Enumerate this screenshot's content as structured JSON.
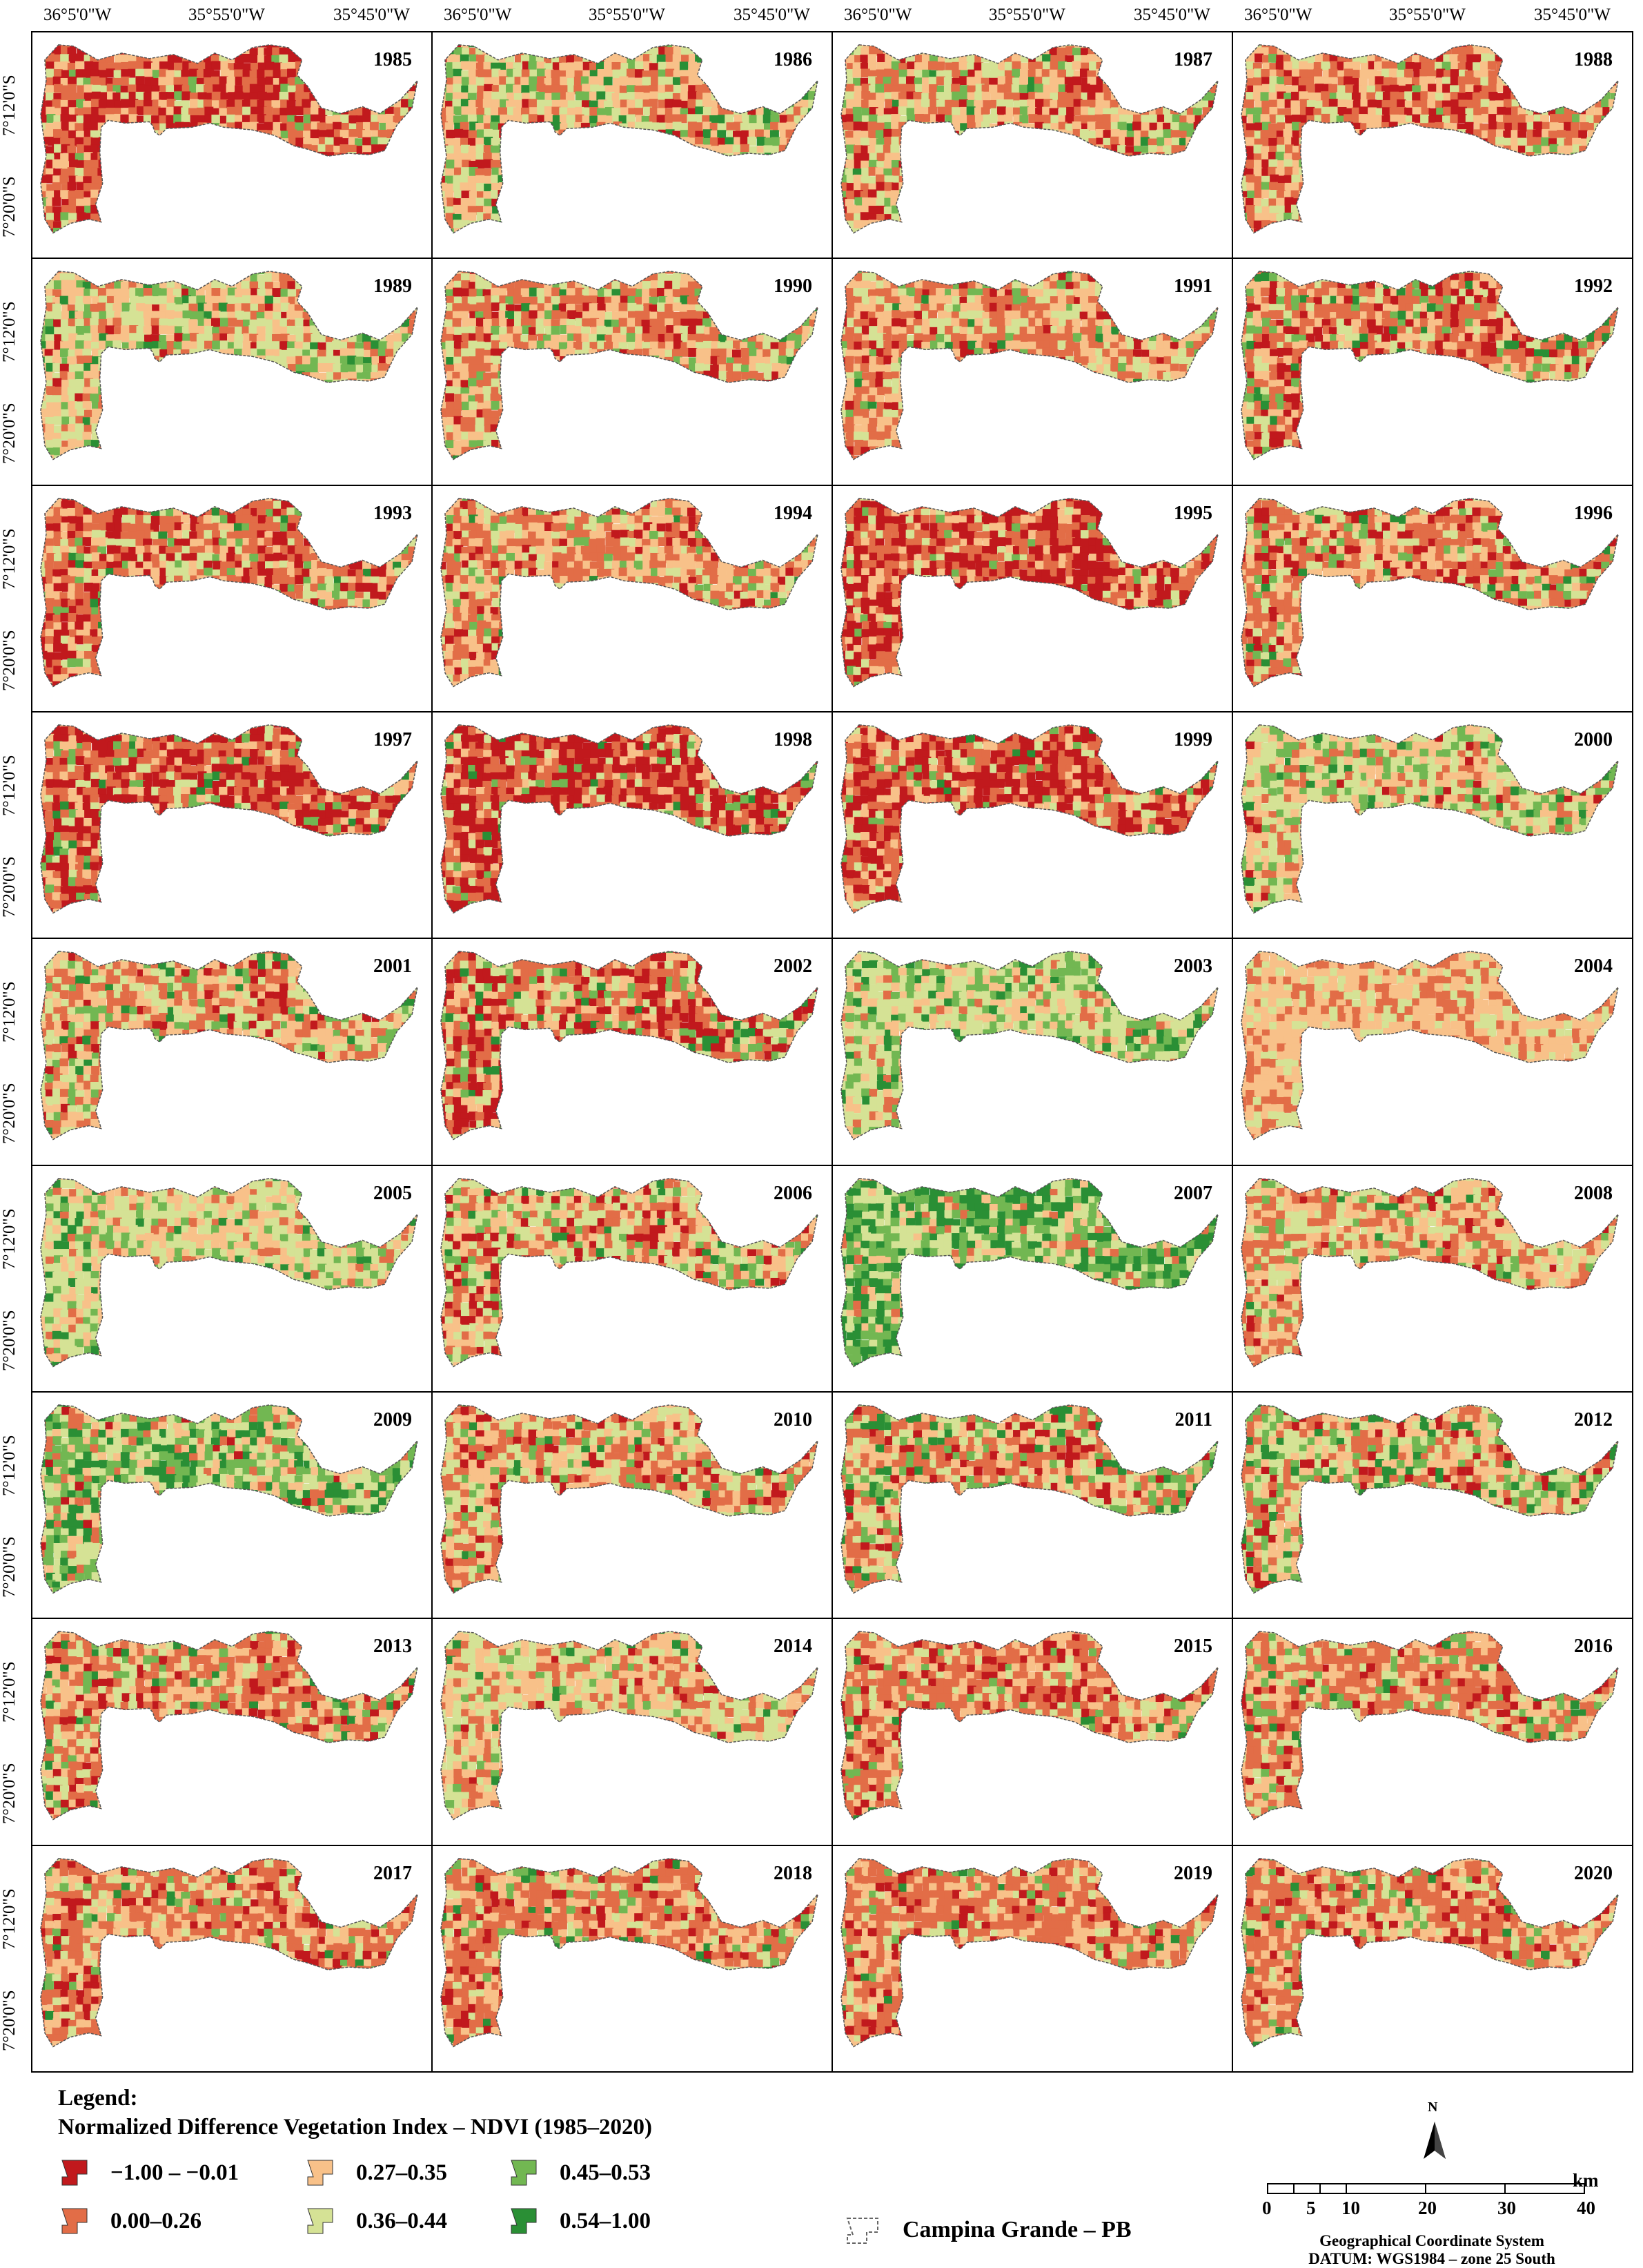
{
  "top_axis_labels": [
    "36°5'0\"W",
    "35°55'0\"W",
    "35°45'0\"W"
  ],
  "side_axis_labels": [
    "7°12'0\"S",
    "7°20'0\"S"
  ],
  "years": [
    "1985",
    "1986",
    "1987",
    "1988",
    "1989",
    "1990",
    "1991",
    "1992",
    "1993",
    "1994",
    "1995",
    "1996",
    "1997",
    "1998",
    "1999",
    "2000",
    "2001",
    "2002",
    "2003",
    "2004",
    "2005",
    "2006",
    "2007",
    "2008",
    "2009",
    "2010",
    "2011",
    "2012",
    "2013",
    "2014",
    "2015",
    "2016",
    "2017",
    "2018",
    "2019",
    "2020"
  ],
  "panel_mix": [
    [
      40,
      30,
      15,
      10,
      5,
      0
    ],
    [
      5,
      20,
      30,
      25,
      12,
      8
    ],
    [
      12,
      28,
      25,
      22,
      10,
      3
    ],
    [
      20,
      35,
      25,
      15,
      5,
      0
    ],
    [
      5,
      15,
      30,
      30,
      15,
      5
    ],
    [
      12,
      30,
      25,
      20,
      10,
      3
    ],
    [
      10,
      30,
      30,
      20,
      8,
      2
    ],
    [
      15,
      35,
      20,
      15,
      10,
      5
    ],
    [
      25,
      35,
      20,
      12,
      6,
      2
    ],
    [
      10,
      35,
      30,
      15,
      8,
      2
    ],
    [
      40,
      30,
      15,
      10,
      5,
      0
    ],
    [
      15,
      35,
      25,
      15,
      8,
      2
    ],
    [
      35,
      30,
      15,
      10,
      7,
      3
    ],
    [
      45,
      28,
      12,
      8,
      5,
      2
    ],
    [
      38,
      30,
      15,
      10,
      5,
      2
    ],
    [
      5,
      15,
      25,
      30,
      20,
      5
    ],
    [
      8,
      25,
      25,
      25,
      12,
      5
    ],
    [
      30,
      25,
      15,
      15,
      10,
      5
    ],
    [
      0,
      10,
      15,
      40,
      20,
      15
    ],
    [
      0,
      25,
      50,
      25,
      0,
      0
    ],
    [
      0,
      8,
      30,
      40,
      15,
      7
    ],
    [
      15,
      20,
      20,
      30,
      10,
      5
    ],
    [
      0,
      5,
      10,
      20,
      30,
      35
    ],
    [
      5,
      30,
      25,
      30,
      8,
      2
    ],
    [
      3,
      10,
      15,
      25,
      25,
      22
    ],
    [
      10,
      30,
      25,
      20,
      10,
      5
    ],
    [
      10,
      25,
      20,
      20,
      15,
      10
    ],
    [
      8,
      20,
      20,
      25,
      15,
      12
    ],
    [
      12,
      35,
      25,
      15,
      8,
      5
    ],
    [
      2,
      20,
      35,
      35,
      6,
      2
    ],
    [
      12,
      40,
      25,
      15,
      6,
      2
    ],
    [
      10,
      40,
      25,
      15,
      7,
      3
    ],
    [
      12,
      40,
      25,
      13,
      7,
      3
    ],
    [
      12,
      40,
      25,
      13,
      7,
      3
    ],
    [
      12,
      42,
      25,
      12,
      6,
      3
    ],
    [
      12,
      42,
      25,
      12,
      6,
      3
    ]
  ],
  "colors": [
    "#c1191d",
    "#e26d47",
    "#f8c189",
    "#d5e295",
    "#72b752",
    "#2a8f35"
  ],
  "legend": {
    "title_line1": "Legend:",
    "title_line2": "Normalized Difference Vegetation Index – NDVI (1985–2020)",
    "classes": [
      {
        "label": "−1.00 – −0.01",
        "color": "#c1191d"
      },
      {
        "label": "0.00–0.26",
        "color": "#e26d47"
      },
      {
        "label": "0.27–0.35",
        "color": "#f8c189"
      },
      {
        "label": "0.36–0.44",
        "color": "#d5e295"
      },
      {
        "label": "0.45–0.53",
        "color": "#72b752"
      },
      {
        "label": "0.54–1.00",
        "color": "#2a8f35"
      }
    ],
    "boundary_label": "Campina Grande – PB"
  },
  "scale_bar": {
    "north": "N",
    "unit": "km",
    "ticks": [
      "0",
      "5",
      "10",
      "20",
      "30",
      "40"
    ]
  },
  "crs": {
    "line1": "Geographical Coordinate System",
    "line2": "DATUM: WGS1984 – zone 25 South"
  }
}
